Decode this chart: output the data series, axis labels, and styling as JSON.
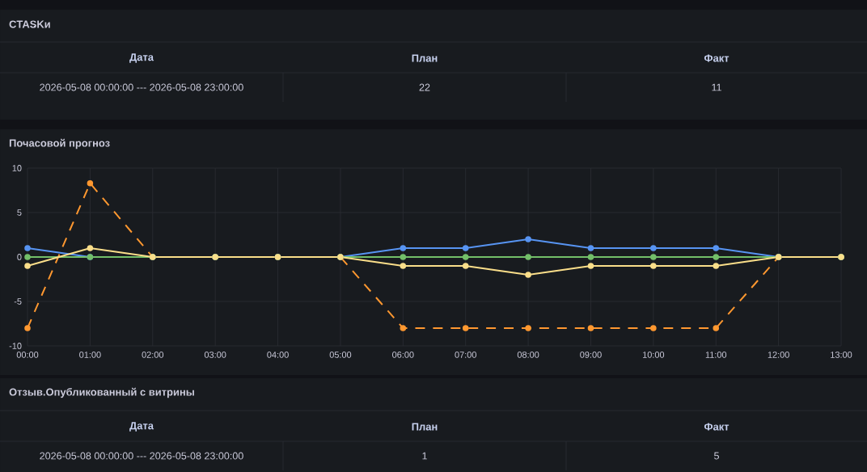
{
  "chart_data": [
    {
      "type": "other",
      "title": "CTASKи",
      "annotations": [
        "Дата",
        "План",
        "Факт",
        "2026-05-08 00:00:00 --- 2026-05-08 23:00:00",
        "22",
        "11"
      ]
    },
    {
      "type": "line",
      "title": "Почасовой прогноз",
      "categories": [
        "00:00",
        "01:00",
        "02:00",
        "03:00",
        "04:00",
        "05:00",
        "06:00",
        "07:00",
        "08:00",
        "09:00",
        "10:00",
        "11:00",
        "12:00",
        "13:00"
      ],
      "ylim": [
        -10,
        10
      ],
      "yticks": [
        -10,
        -5,
        0,
        5,
        10
      ],
      "grid": true,
      "marker": "circle",
      "series": [
        {
          "color": "#ff9830",
          "line_style": "dashed",
          "values": [
            -8,
            8.3,
            0,
            0,
            0,
            0,
            -8,
            -8,
            -8,
            -8,
            -8,
            -8,
            0,
            0
          ]
        },
        {
          "color": "#5794f2",
          "values": [
            1,
            0,
            0,
            0,
            0,
            0,
            1,
            1,
            2,
            1,
            1,
            1,
            0,
            0
          ]
        },
        {
          "color": "#73bf69",
          "values": [
            0,
            0,
            0,
            0,
            0,
            0,
            0,
            0,
            0,
            0,
            0,
            0,
            0,
            0
          ]
        },
        {
          "color": "#fade8a",
          "values": [
            -1,
            1,
            0,
            0,
            0,
            0,
            -1,
            -1,
            -2,
            -1,
            -1,
            -1,
            0,
            0
          ]
        }
      ]
    },
    {
      "type": "other",
      "title": "Отзыв.Опубликованный с витрины",
      "annotations": [
        "Дата",
        "План",
        "Факт",
        "2026-05-08 00:00:00 --- 2026-05-08 23:00:00",
        "1",
        "5"
      ]
    }
  ]
}
